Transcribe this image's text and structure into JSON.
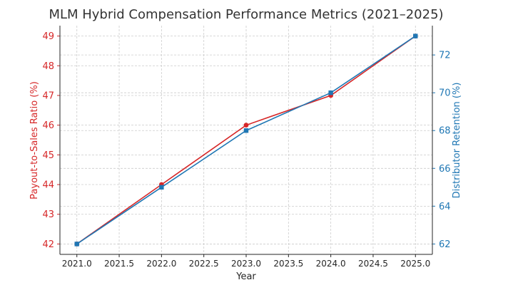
{
  "chart_data": {
    "type": "line",
    "title": "MLM Hybrid Compensation Performance Metrics (2021–2025)",
    "xlabel": "Year",
    "x": [
      2021,
      2022,
      2023,
      2024,
      2025
    ],
    "xlim": [
      2020.8,
      2025.2
    ],
    "xticks": [
      "2021.0",
      "2021.5",
      "2022.0",
      "2022.5",
      "2023.0",
      "2023.5",
      "2024.0",
      "2024.5",
      "2025.0"
    ],
    "grid": true,
    "series": [
      {
        "name": "Payout-to-Sales Ratio (%)",
        "axis": "left",
        "color": "#d62728",
        "marker": "circle",
        "values": [
          42,
          44,
          46,
          47,
          49
        ]
      },
      {
        "name": "Distributor Retention (%)",
        "axis": "right",
        "color": "#1f77b4",
        "marker": "square",
        "values": [
          62,
          65,
          68,
          70,
          73
        ]
      }
    ],
    "left_axis": {
      "label": "Payout-to-Sales Ratio (%)",
      "color": "#d62728",
      "ylim": [
        41.65,
        49.35
      ],
      "ticks": [
        "42",
        "43",
        "44",
        "45",
        "46",
        "47",
        "48",
        "49"
      ]
    },
    "right_axis": {
      "label": "Distributor Retention (%)",
      "color": "#1f77b4",
      "ylim": [
        61.45,
        73.55
      ],
      "ticks": [
        "62",
        "64",
        "66",
        "68",
        "70",
        "72"
      ]
    }
  }
}
